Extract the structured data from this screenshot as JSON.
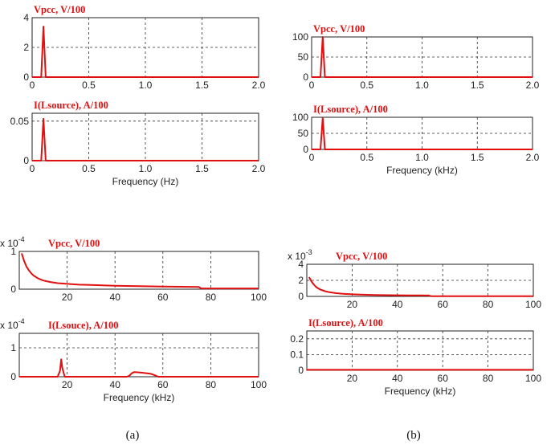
{
  "chart_data": [
    {
      "id": "a-top-vpcc",
      "type": "line",
      "title": "Vpcc, V/100",
      "xlabel": "",
      "ylabel": "",
      "xlim": [
        0,
        2.0
      ],
      "ylim": [
        0,
        4
      ],
      "xticks": [
        "0",
        "0.5",
        "1.0",
        "1.5",
        "2.0"
      ],
      "yticks": [
        "0",
        "2",
        "4"
      ],
      "exponent": "",
      "grid": true,
      "series": [
        {
          "x": [
            0,
            0.08,
            0.1,
            0.12,
            2.0
          ],
          "y": [
            0,
            0,
            3.4,
            0,
            0
          ]
        }
      ]
    },
    {
      "id": "a-top-i",
      "type": "line",
      "title": "I(Lsource), A/100",
      "xlabel": "Frequency (Hz)",
      "ylabel": "",
      "xlim": [
        0,
        2.0
      ],
      "ylim": [
        0,
        0.06
      ],
      "xticks": [
        "0",
        "0.5",
        "1.0",
        "1.5",
        "2.0"
      ],
      "yticks": [
        "0",
        "0.05"
      ],
      "exponent": "",
      "grid": true,
      "series": [
        {
          "x": [
            0,
            0.08,
            0.1,
            0.12,
            2.0
          ],
          "y": [
            0,
            0,
            0.053,
            0,
            0
          ]
        }
      ]
    },
    {
      "id": "b-top-vpcc",
      "type": "line",
      "title": "Vpcc, V/100",
      "xlabel": "",
      "ylabel": "",
      "xlim": [
        0,
        2.0
      ],
      "ylim": [
        0,
        100
      ],
      "xticks": [
        "0",
        "0.5",
        "1.0",
        "1.5",
        "2.0"
      ],
      "yticks": [
        "0",
        "50",
        "100"
      ],
      "exponent": "",
      "grid": true,
      "series": [
        {
          "x": [
            0,
            0.08,
            0.1,
            0.12,
            2.0
          ],
          "y": [
            0,
            0,
            100,
            0,
            0
          ]
        }
      ]
    },
    {
      "id": "b-top-i",
      "type": "line",
      "title": "I(Lsource), A/100",
      "xlabel": "Frequency (kHz)",
      "ylabel": "",
      "xlim": [
        0,
        2.0
      ],
      "ylim": [
        0,
        100
      ],
      "xticks": [
        "0",
        "0.5",
        "1.0",
        "1.5",
        "2.0"
      ],
      "yticks": [
        "0",
        "50",
        "100"
      ],
      "exponent": "",
      "grid": true,
      "series": [
        {
          "x": [
            0,
            0.08,
            0.1,
            0.12,
            2.0
          ],
          "y": [
            0,
            0,
            98,
            0,
            0
          ]
        }
      ]
    },
    {
      "id": "a-bot-vpcc",
      "type": "line",
      "title": "Vpcc, V/100",
      "xlabel": "",
      "ylabel": "",
      "xlim": [
        0,
        100
      ],
      "ylim": [
        0,
        1
      ],
      "xticks": [
        "20",
        "40",
        "60",
        "80",
        "100"
      ],
      "yticks": [
        "0",
        "1"
      ],
      "exponent": "x 10^-4",
      "grid": true,
      "series": [
        {
          "x": [
            1,
            2,
            3,
            4,
            5,
            6,
            8,
            10,
            13,
            16,
            20,
            25,
            30,
            40,
            50,
            60,
            75,
            76,
            80,
            90,
            100
          ],
          "y": [
            0.95,
            0.75,
            0.6,
            0.5,
            0.42,
            0.36,
            0.28,
            0.23,
            0.19,
            0.16,
            0.14,
            0.12,
            0.11,
            0.09,
            0.08,
            0.07,
            0.06,
            0.02,
            0.02,
            0.02,
            0.02
          ]
        }
      ]
    },
    {
      "id": "a-bot-i",
      "type": "line",
      "title": "I(Lsouce), A/100",
      "xlabel": "Frequency (kHz)",
      "ylabel": "",
      "xlim": [
        0,
        100
      ],
      "ylim": [
        0,
        1.5
      ],
      "xticks": [
        "20",
        "40",
        "60",
        "80",
        "100"
      ],
      "yticks": [
        "0",
        "1"
      ],
      "exponent": "x 10^-4",
      "grid": true,
      "series": [
        {
          "x": [
            0,
            16,
            17,
            17.5,
            18,
            19,
            45,
            46,
            47,
            48,
            50,
            52,
            55,
            57,
            58,
            100
          ],
          "y": [
            0,
            0,
            0.2,
            0.6,
            0.3,
            0,
            0,
            0.04,
            0.12,
            0.16,
            0.15,
            0.13,
            0.1,
            0.04,
            0,
            0
          ]
        }
      ]
    },
    {
      "id": "b-bot-vpcc",
      "type": "line",
      "title": "Vpcc, V/100",
      "xlabel": "",
      "ylabel": "",
      "xlim": [
        0,
        100
      ],
      "ylim": [
        0,
        4
      ],
      "xticks": [
        "20",
        "40",
        "60",
        "80",
        "100"
      ],
      "yticks": [
        "0",
        "2",
        "4"
      ],
      "exponent": "x 10^-3",
      "grid": true,
      "series": [
        {
          "x": [
            1,
            2,
            3,
            4,
            5,
            6,
            8,
            10,
            13,
            16,
            20,
            25,
            30,
            40,
            50,
            54,
            55,
            60,
            100
          ],
          "y": [
            2.4,
            1.9,
            1.5,
            1.2,
            1.0,
            0.85,
            0.65,
            0.52,
            0.4,
            0.32,
            0.26,
            0.21,
            0.18,
            0.14,
            0.12,
            0.11,
            0.02,
            0.02,
            0.02
          ]
        }
      ]
    },
    {
      "id": "b-bot-i",
      "type": "line",
      "title": "I(Lsource), A/100",
      "xlabel": "Frequency (kHz)",
      "ylabel": "",
      "xlim": [
        0,
        100
      ],
      "ylim": [
        0,
        0.25
      ],
      "xticks": [
        "20",
        "40",
        "60",
        "80",
        "100"
      ],
      "yticks": [
        "0",
        "0.1",
        "0.2"
      ],
      "exponent": "",
      "grid": true,
      "series": [
        {
          "x": [
            0,
            100
          ],
          "y": [
            0.003,
            0.003
          ]
        }
      ]
    }
  ],
  "captions": {
    "a": "(a)",
    "b": "(b)"
  },
  "colors": {
    "trace": "#e01010",
    "title": "#dd1111",
    "grid": "#333333",
    "frame": "#222222"
  }
}
